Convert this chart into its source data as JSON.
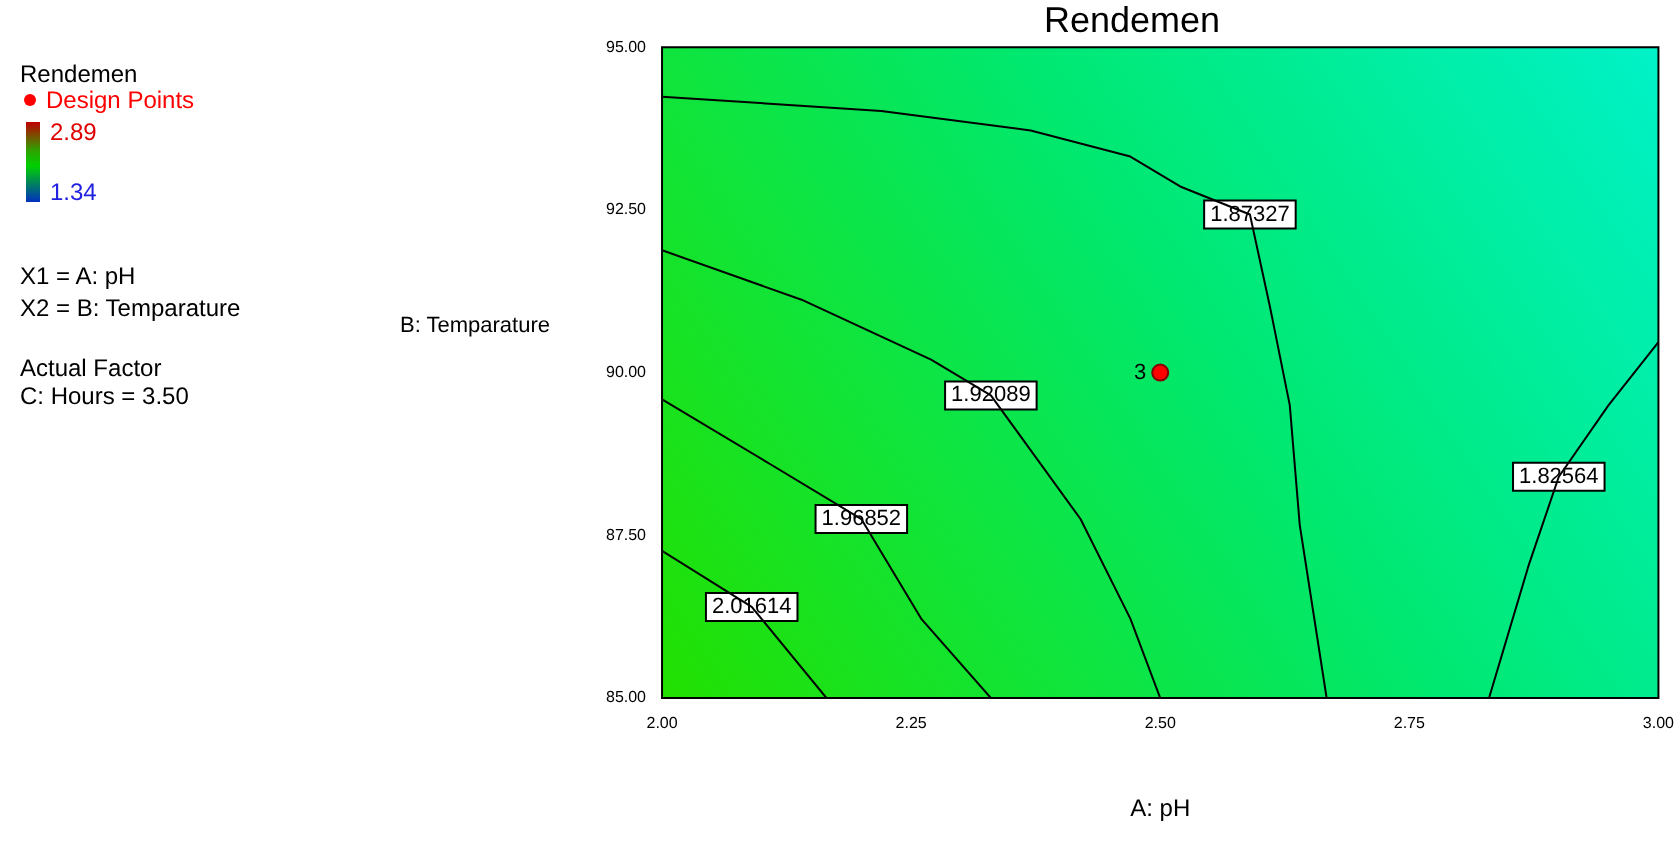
{
  "chart_data": {
    "type": "line",
    "title": "Rendemen",
    "xlabel": "A: pH",
    "ylabel": "B: Temparature",
    "legend_title": "Rendemen",
    "xlim": [
      2.0,
      3.0
    ],
    "xticks": [
      {
        "value": 2,
        "label": "2.00"
      },
      {
        "value": 2.25,
        "label": "2.25"
      },
      {
        "value": 2.5,
        "label": "2.50"
      },
      {
        "value": 2.75,
        "label": "2.75"
      },
      {
        "value": 3,
        "label": "3.00"
      }
    ],
    "ylim": [
      85,
      95
    ],
    "yticks": [
      {
        "value": 85,
        "label": "85.00"
      },
      {
        "value": 87.5,
        "label": "87.50"
      },
      {
        "value": 90,
        "label": "90.00"
      },
      {
        "value": 92.5,
        "label": "92.50"
      },
      {
        "value": 95,
        "label": "95.00"
      }
    ],
    "grid": false,
    "legend": "left",
    "marker": "none",
    "line_style": "solid",
    "series": [
      {
        "color": "#000000",
        "x": [
          2.0,
          2.22,
          2.37,
          2.47,
          2.52,
          2.59,
          2.61,
          2.63,
          2.64,
          2.667
        ],
        "values": [
          94.24,
          94.02,
          93.72,
          93.32,
          92.86,
          92.43,
          91.02,
          89.5,
          87.66,
          85
        ]
      },
      {
        "color": "#000000",
        "x": [
          2.0,
          2.14,
          2.27,
          2.33,
          2.42,
          2.47,
          2.5
        ],
        "values": [
          91.88,
          91.12,
          90.2,
          89.65,
          87.75,
          86.22,
          85
        ]
      },
      {
        "color": "#000000",
        "x": [
          2.0,
          2.11,
          2.2,
          2.26,
          2.33
        ],
        "values": [
          89.59,
          88.58,
          87.75,
          86.22,
          85
        ]
      },
      {
        "color": "#000000",
        "x": [
          2.0,
          2.09,
          2.165
        ],
        "values": [
          87.26,
          86.4,
          85
        ]
      },
      {
        "color": "#000000",
        "x": [
          2.83,
          2.87,
          2.9,
          2.95,
          3.0
        ],
        "values": [
          85,
          87.05,
          88.4,
          89.5,
          90.47
        ]
      },
      {
        "type": "scatter",
        "name": "Design Points",
        "color": "#ff0000",
        "marker": "circle",
        "x": [
          2.5
        ],
        "values": [
          90
        ]
      }
    ],
    "annotations": [
      "2.89",
      "1.34",
      "X1 = A: pH",
      "X2 = B: Temparature",
      "Actual Factor",
      "C:  Hours = 3.50",
      {
        "text": "1.87327",
        "x": 2.59,
        "y": 92.43
      },
      {
        "text": "1.92089",
        "x": 2.33,
        "y": 89.65
      },
      {
        "text": "1.96852",
        "x": 2.2,
        "y": 87.75
      },
      {
        "text": "2.01614",
        "x": 2.09,
        "y": 86.4
      },
      {
        "text": "1.82564",
        "x": 2.9,
        "y": 88.4
      },
      {
        "text": "3",
        "x": 2.5,
        "y": 90
      }
    ]
  }
}
